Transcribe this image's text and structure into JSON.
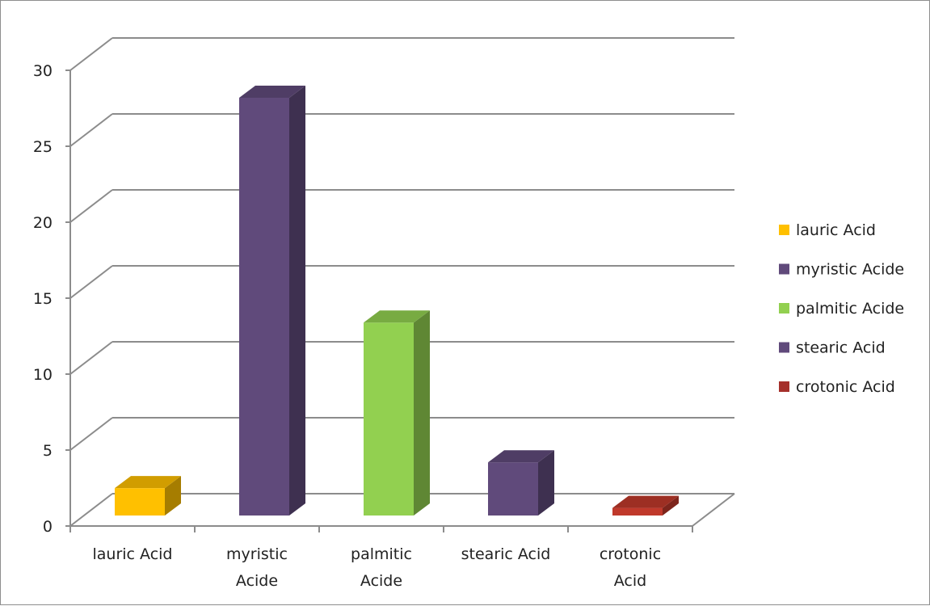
{
  "chart_data": {
    "type": "bar",
    "categories": [
      [
        "lauric Acid"
      ],
      [
        "myristic",
        "Acide"
      ],
      [
        "palmitic",
        "Acide"
      ],
      [
        "stearic Acid"
      ],
      [
        "crotonic",
        "Acid"
      ]
    ],
    "values": [
      1.8,
      27.5,
      12.7,
      3.5,
      0.5
    ],
    "colors": [
      "#ffc000",
      "#604a7b",
      "#92d050",
      "#604a7b",
      "#c0392b"
    ],
    "legend": {
      "placement": "right",
      "entries": [
        {
          "label": "lauric Acid",
          "color": "#ffc000"
        },
        {
          "label": "myristic Acide",
          "color": "#604a7b"
        },
        {
          "label": "palmitic Acide",
          "color": "#92d050"
        },
        {
          "label": "stearic Acid",
          "color": "#604a7b"
        },
        {
          "label": "crotonic Acid",
          "color": "#a5302b"
        }
      ]
    },
    "ylim": [
      0,
      30
    ],
    "yticks": [
      0,
      5,
      10,
      15,
      20,
      25,
      30
    ],
    "grid": true,
    "three_d": true
  }
}
